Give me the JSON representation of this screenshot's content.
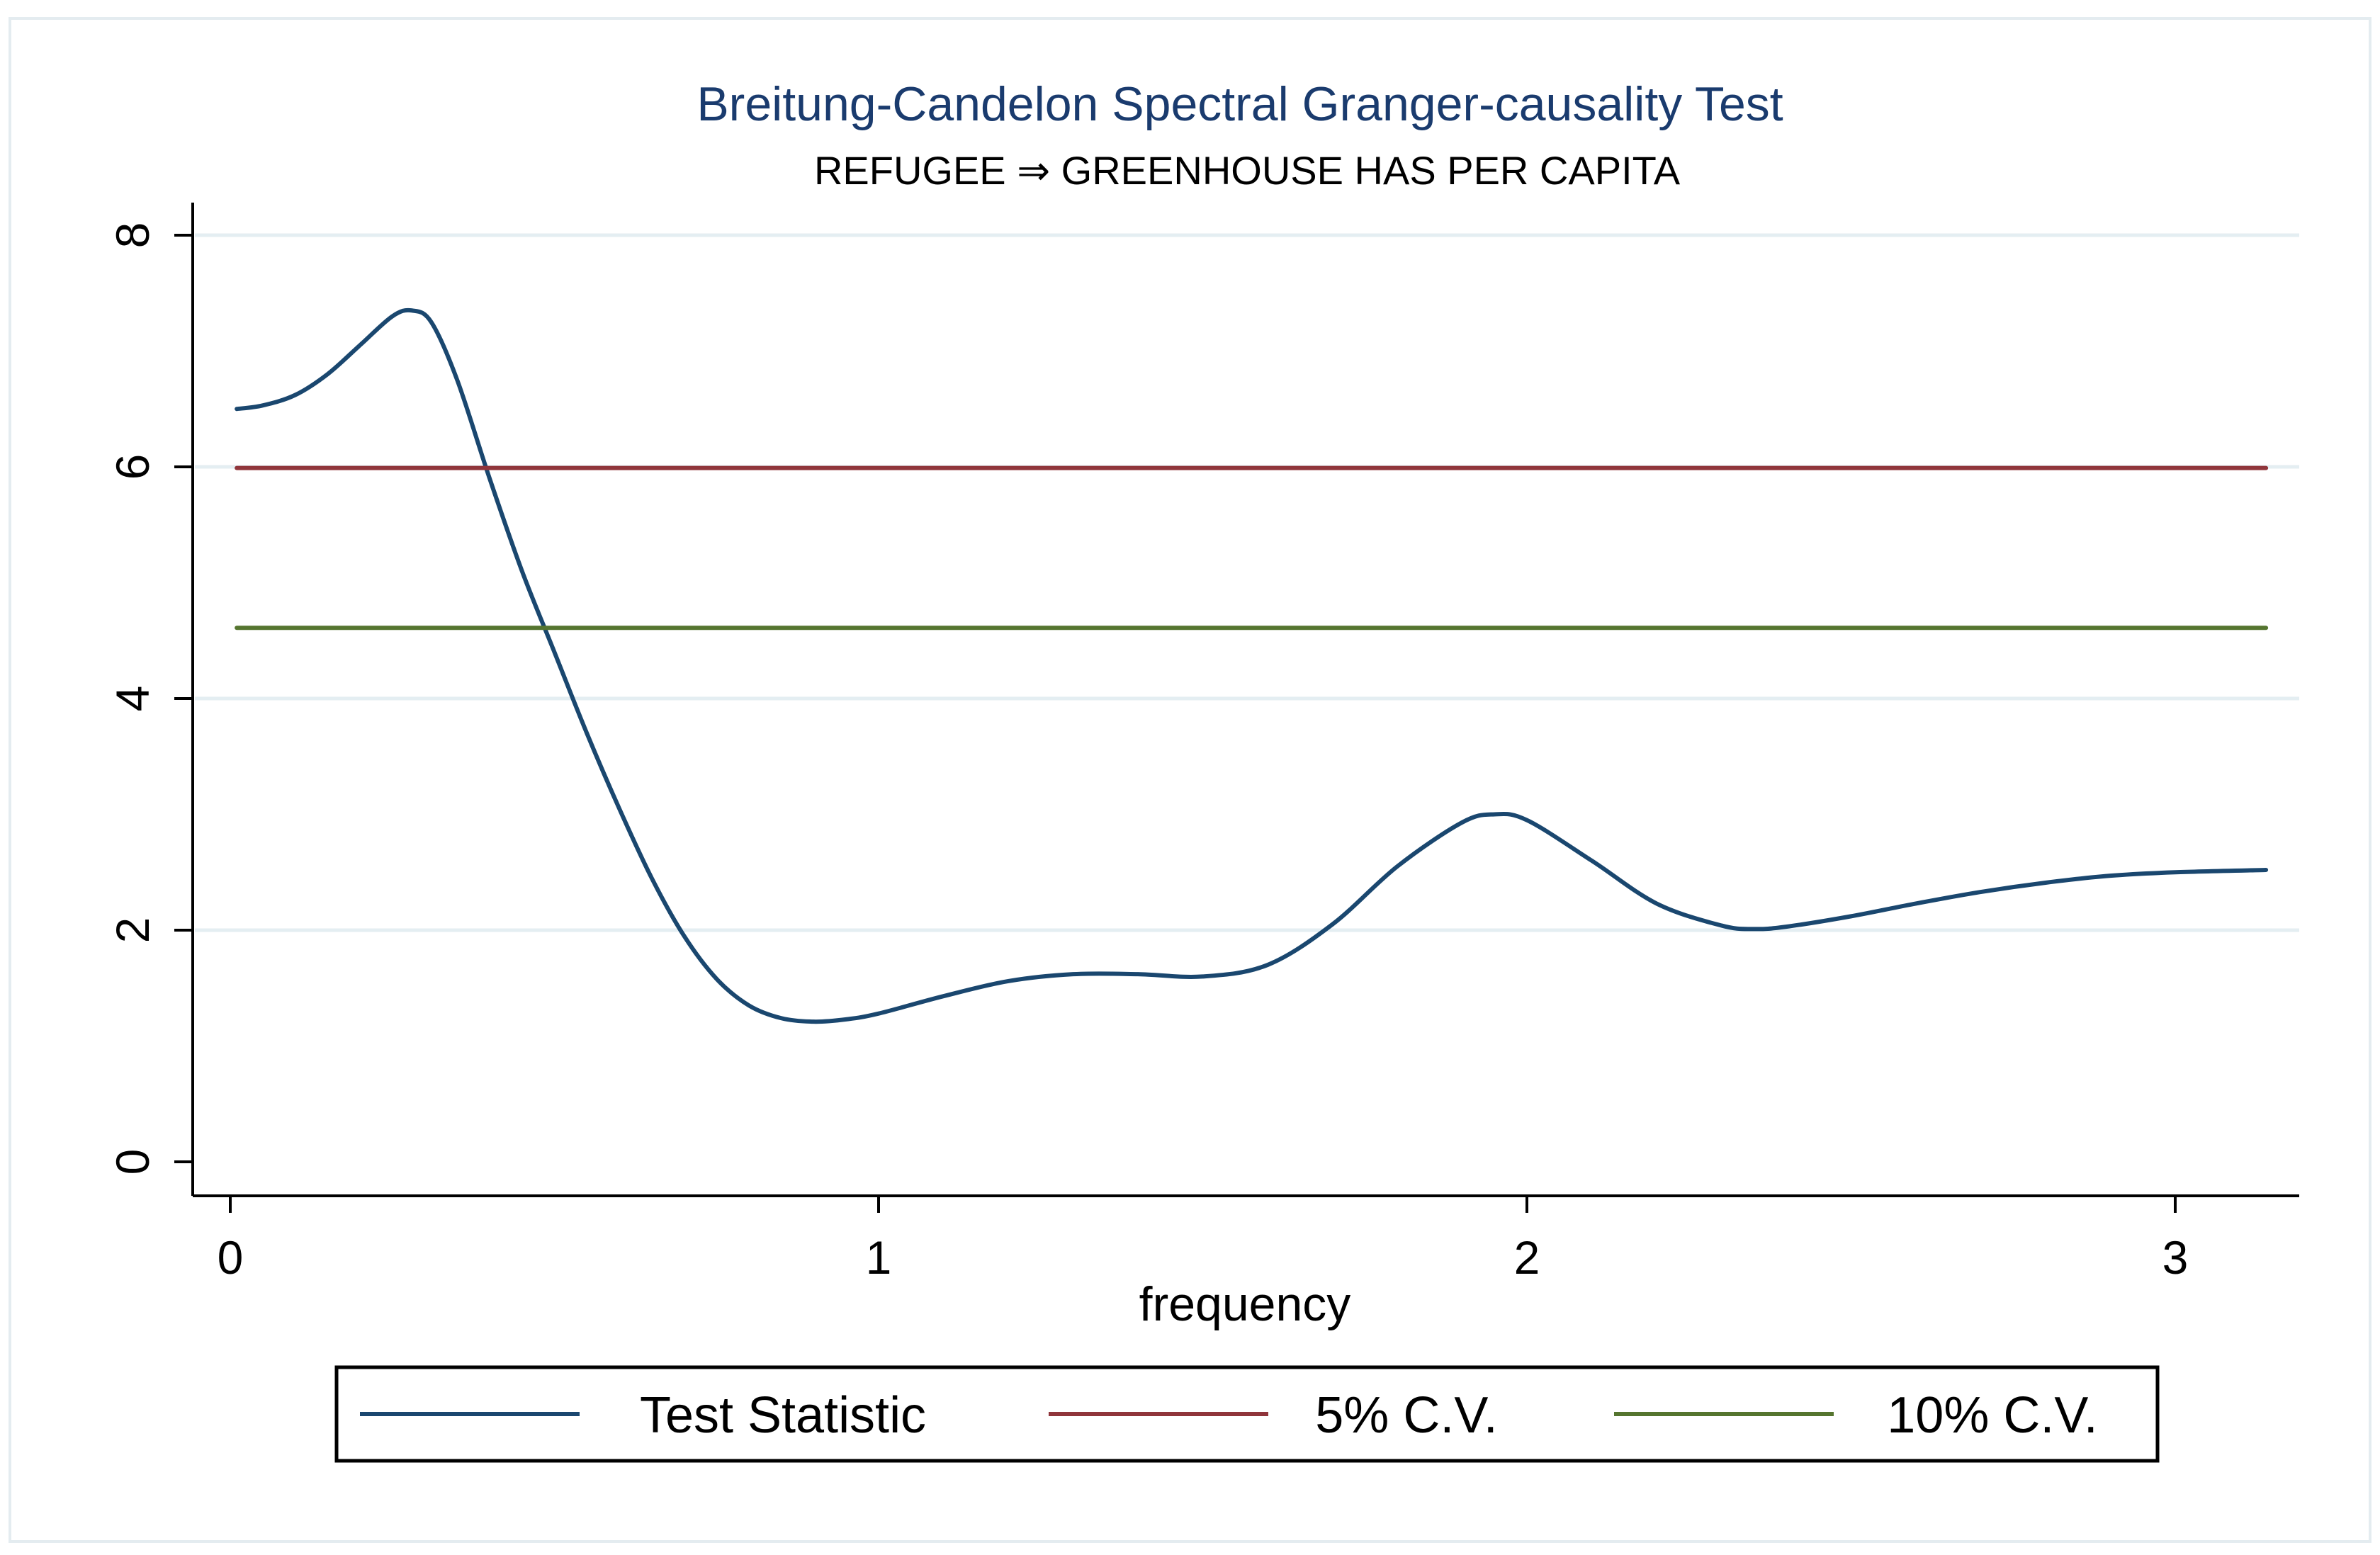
{
  "chart_data": {
    "type": "line",
    "title": "Breitung-Candelon Spectral Granger-causality Test",
    "subtitle": "REFUGEE ⇒ GREENHOUSE HAS PER CAPITA",
    "xlabel": "frequency",
    "ylabel": "",
    "xlim": [
      0,
      3.1416
    ],
    "ylim": [
      0,
      8
    ],
    "xticks": [
      0,
      1,
      2,
      3
    ],
    "yticks": [
      0,
      2,
      4,
      6,
      8
    ],
    "grid": true,
    "legend_position": "bottom",
    "series": [
      {
        "name": "Test Statistic",
        "color": "#1a476f",
        "x": [
          0.01,
          0.05,
          0.1,
          0.15,
          0.2,
          0.25,
          0.28,
          0.31,
          0.35,
          0.4,
          0.45,
          0.5,
          0.55,
          0.6,
          0.65,
          0.7,
          0.75,
          0.8,
          0.85,
          0.9,
          0.95,
          1.0,
          1.1,
          1.2,
          1.3,
          1.4,
          1.5,
          1.6,
          1.7,
          1.8,
          1.9,
          1.95,
          2.0,
          2.1,
          2.2,
          2.3,
          2.35,
          2.4,
          2.5,
          2.6,
          2.7,
          2.8,
          2.9,
          3.0,
          3.14
        ],
        "values": [
          6.5,
          6.53,
          6.62,
          6.8,
          7.05,
          7.3,
          7.35,
          7.25,
          6.75,
          5.9,
          5.1,
          4.4,
          3.7,
          3.05,
          2.45,
          1.95,
          1.58,
          1.35,
          1.24,
          1.21,
          1.23,
          1.28,
          1.43,
          1.56,
          1.62,
          1.62,
          1.6,
          1.7,
          2.05,
          2.55,
          2.93,
          3.0,
          2.95,
          2.6,
          2.23,
          2.04,
          2.01,
          2.03,
          2.12,
          2.23,
          2.33,
          2.41,
          2.47,
          2.5,
          2.52
        ]
      },
      {
        "name": "5% C.V.",
        "color": "#90353b",
        "x": [
          0.01,
          3.14
        ],
        "values": [
          5.99,
          5.99
        ]
      },
      {
        "name": "10% C.V.",
        "color": "#55752f",
        "x": [
          0.01,
          3.14
        ],
        "values": [
          4.61,
          4.61
        ]
      }
    ]
  }
}
